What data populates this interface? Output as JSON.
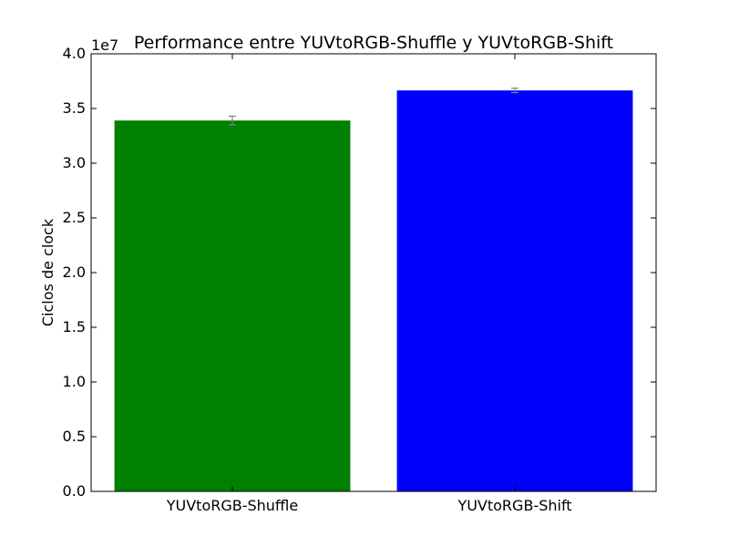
{
  "chart_data": {
    "type": "bar",
    "title": "Performance entre YUVtoRGB-Shuffle y YUVtoRGB-Shift",
    "xlabel": "",
    "ylabel": "Ciclos de clock",
    "y_offset_label": "1e7",
    "categories": [
      "YUVtoRGB-Shuffle",
      "YUVtoRGB-Shift"
    ],
    "values": [
      33900000,
      36650000
    ],
    "errors": [
      400000,
      200000
    ],
    "colors": [
      "#008000",
      "#0000ff"
    ],
    "error_color": "#808080",
    "ylim": [
      0,
      40000000
    ],
    "yticks": [
      0,
      5000000,
      10000000,
      15000000,
      20000000,
      25000000,
      30000000,
      35000000,
      40000000
    ],
    "ytick_labels": [
      "0.0",
      "0.5",
      "1.0",
      "1.5",
      "2.0",
      "2.5",
      "3.0",
      "3.5",
      "4.0"
    ],
    "grid": false,
    "legend": false
  }
}
